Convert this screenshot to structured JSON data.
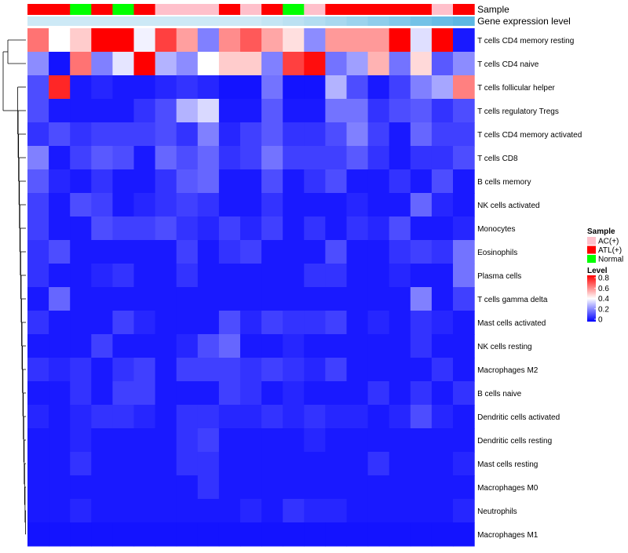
{
  "chart_data": {
    "type": "heatmap",
    "annotation_labels": {
      "sample": "Sample",
      "gene_expression": "Gene expression level"
    },
    "sample_colors": {
      "AC(+)": "#ffc0cb",
      "ATL(+)": "#ff0000",
      "Normal": "#00ff00"
    },
    "samples": [
      "ATL(+)",
      "ATL(+)",
      "Normal",
      "ATL(+)",
      "Normal",
      "ATL(+)",
      "AC(+)",
      "AC(+)",
      "AC(+)",
      "ATL(+)",
      "AC(+)",
      "ATL(+)",
      "Normal",
      "AC(+)",
      "ATL(+)",
      "ATL(+)",
      "ATL(+)",
      "ATL(+)",
      "ATL(+)",
      "AC(+)",
      "ATL(+)"
    ],
    "gene_expression_colors": [
      "#cde9f6",
      "#cde9f6",
      "#cde9f6",
      "#cde9f6",
      "#cde9f6",
      "#cde9f6",
      "#cde9f6",
      "#cde9f6",
      "#cde9f6",
      "#cde9f6",
      "#cde9f6",
      "#c4e5f4",
      "#bce1f2",
      "#b2ddf1",
      "#a8d8ef",
      "#9cd3ed",
      "#8fcdeb",
      "#82c8e9",
      "#74c2e7",
      "#67bce5",
      "#5cb7e3"
    ],
    "rows": [
      "T cells CD4 memory resting",
      "T cells CD4 naive",
      "T cells follicular helper",
      "T cells regulatory  Tregs",
      "T cells CD4 memory activated",
      "T cells CD8",
      "B cells memory",
      "NK cells activated",
      "Monocytes",
      "Eosinophils",
      "Plasma cells",
      "T cells gamma delta",
      "Mast cells activated",
      "NK cells resting",
      "Macrophages M2",
      "B cells naive",
      "Dendritic cells activated",
      "Dendritic cells resting",
      "Mast cells resting",
      "Macrophages M0",
      "Neutrophils",
      "Macrophages M1"
    ],
    "values": [
      [
        0.62,
        0.4,
        0.48,
        0.8,
        0.8,
        0.38,
        0.7,
        0.55,
        0.2,
        0.58,
        0.66,
        0.54,
        0.45,
        0.22,
        0.56,
        0.56,
        0.56,
        0.8,
        0.35,
        0.8,
        0.04
      ],
      [
        0.22,
        0.03,
        0.62,
        0.2,
        0.36,
        0.8,
        0.28,
        0.22,
        0.4,
        0.48,
        0.48,
        0.2,
        0.7,
        0.78,
        0.18,
        0.25,
        0.52,
        0.18,
        0.46,
        0.14,
        0.22
      ],
      [
        0.12,
        0.74,
        0.04,
        0.06,
        0.04,
        0.04,
        0.06,
        0.08,
        0.06,
        0.03,
        0.03,
        0.18,
        0.03,
        0.03,
        0.28,
        0.12,
        0.04,
        0.1,
        0.2,
        0.26,
        0.6
      ],
      [
        0.12,
        0.04,
        0.04,
        0.04,
        0.04,
        0.08,
        0.12,
        0.28,
        0.34,
        0.04,
        0.04,
        0.14,
        0.04,
        0.04,
        0.18,
        0.18,
        0.08,
        0.12,
        0.14,
        0.08,
        0.12
      ],
      [
        0.08,
        0.12,
        0.08,
        0.1,
        0.1,
        0.1,
        0.12,
        0.08,
        0.2,
        0.06,
        0.1,
        0.14,
        0.08,
        0.08,
        0.12,
        0.2,
        0.1,
        0.04,
        0.16,
        0.1,
        0.1
      ],
      [
        0.2,
        0.04,
        0.1,
        0.14,
        0.12,
        0.04,
        0.16,
        0.12,
        0.16,
        0.08,
        0.1,
        0.18,
        0.1,
        0.1,
        0.1,
        0.14,
        0.08,
        0.04,
        0.08,
        0.08,
        0.12
      ],
      [
        0.14,
        0.06,
        0.04,
        0.08,
        0.04,
        0.04,
        0.08,
        0.14,
        0.16,
        0.04,
        0.04,
        0.12,
        0.04,
        0.08,
        0.12,
        0.04,
        0.04,
        0.08,
        0.04,
        0.12,
        0.04
      ],
      [
        0.1,
        0.04,
        0.12,
        0.1,
        0.04,
        0.06,
        0.08,
        0.1,
        0.08,
        0.04,
        0.04,
        0.08,
        0.04,
        0.04,
        0.04,
        0.06,
        0.04,
        0.04,
        0.16,
        0.06,
        0.04
      ],
      [
        0.1,
        0.04,
        0.04,
        0.12,
        0.1,
        0.1,
        0.12,
        0.08,
        0.06,
        0.1,
        0.06,
        0.1,
        0.04,
        0.08,
        0.04,
        0.08,
        0.06,
        0.12,
        0.04,
        0.04,
        0.06
      ],
      [
        0.08,
        0.12,
        0.04,
        0.04,
        0.04,
        0.04,
        0.04,
        0.1,
        0.04,
        0.08,
        0.1,
        0.04,
        0.04,
        0.04,
        0.12,
        0.04,
        0.04,
        0.08,
        0.1,
        0.08,
        0.18
      ],
      [
        0.08,
        0.04,
        0.04,
        0.06,
        0.08,
        0.04,
        0.04,
        0.08,
        0.04,
        0.04,
        0.04,
        0.04,
        0.04,
        0.08,
        0.08,
        0.04,
        0.04,
        0.06,
        0.04,
        0.04,
        0.18
      ],
      [
        0.04,
        0.16,
        0.04,
        0.04,
        0.04,
        0.04,
        0.04,
        0.04,
        0.04,
        0.04,
        0.04,
        0.04,
        0.04,
        0.04,
        0.04,
        0.04,
        0.04,
        0.04,
        0.2,
        0.04,
        0.1
      ],
      [
        0.08,
        0.04,
        0.04,
        0.04,
        0.1,
        0.06,
        0.04,
        0.04,
        0.04,
        0.12,
        0.06,
        0.1,
        0.08,
        0.08,
        0.1,
        0.04,
        0.06,
        0.04,
        0.08,
        0.06,
        0.04
      ],
      [
        0.04,
        0.04,
        0.04,
        0.1,
        0.04,
        0.04,
        0.04,
        0.06,
        0.12,
        0.16,
        0.04,
        0.04,
        0.06,
        0.04,
        0.04,
        0.04,
        0.04,
        0.04,
        0.08,
        0.04,
        0.04
      ],
      [
        0.08,
        0.06,
        0.08,
        0.04,
        0.08,
        0.1,
        0.04,
        0.1,
        0.1,
        0.1,
        0.08,
        0.1,
        0.08,
        0.06,
        0.1,
        0.04,
        0.04,
        0.04,
        0.04,
        0.08,
        0.04
      ],
      [
        0.04,
        0.04,
        0.08,
        0.04,
        0.1,
        0.1,
        0.04,
        0.04,
        0.04,
        0.1,
        0.08,
        0.04,
        0.06,
        0.04,
        0.04,
        0.04,
        0.08,
        0.04,
        0.08,
        0.04,
        0.08
      ],
      [
        0.06,
        0.04,
        0.06,
        0.08,
        0.08,
        0.06,
        0.04,
        0.08,
        0.08,
        0.06,
        0.06,
        0.08,
        0.06,
        0.08,
        0.06,
        0.06,
        0.04,
        0.06,
        0.12,
        0.06,
        0.04
      ],
      [
        0.04,
        0.04,
        0.06,
        0.04,
        0.04,
        0.04,
        0.04,
        0.08,
        0.1,
        0.04,
        0.04,
        0.04,
        0.04,
        0.06,
        0.04,
        0.04,
        0.04,
        0.04,
        0.04,
        0.04,
        0.04
      ],
      [
        0.04,
        0.04,
        0.08,
        0.04,
        0.04,
        0.04,
        0.04,
        0.08,
        0.08,
        0.04,
        0.04,
        0.04,
        0.04,
        0.04,
        0.04,
        0.04,
        0.08,
        0.04,
        0.04,
        0.04,
        0.06
      ],
      [
        0.04,
        0.04,
        0.04,
        0.04,
        0.04,
        0.04,
        0.04,
        0.04,
        0.08,
        0.04,
        0.04,
        0.04,
        0.04,
        0.04,
        0.04,
        0.04,
        0.04,
        0.04,
        0.04,
        0.04,
        0.04
      ],
      [
        0.04,
        0.04,
        0.06,
        0.04,
        0.04,
        0.04,
        0.04,
        0.04,
        0.04,
        0.04,
        0.06,
        0.04,
        0.08,
        0.06,
        0.06,
        0.04,
        0.04,
        0.04,
        0.04,
        0.04,
        0.06
      ],
      [
        0.03,
        0.03,
        0.03,
        0.03,
        0.03,
        0.03,
        0.03,
        0.03,
        0.03,
        0.03,
        0.03,
        0.03,
        0.03,
        0.03,
        0.03,
        0.03,
        0.03,
        0.03,
        0.03,
        0.03,
        0.03
      ]
    ],
    "color_scale": {
      "min": 0,
      "max": 0.8,
      "colors": [
        "#0000ff",
        "#ffffff",
        "#ff0000"
      ]
    },
    "legend_sample": {
      "title": "Sample",
      "entries": [
        "AC(+)",
        "ATL(+)",
        "Normal"
      ]
    },
    "legend_level": {
      "title": "Level",
      "ticks": [
        "0.8",
        "0.6",
        "0.4",
        "0.2",
        "0"
      ]
    }
  }
}
